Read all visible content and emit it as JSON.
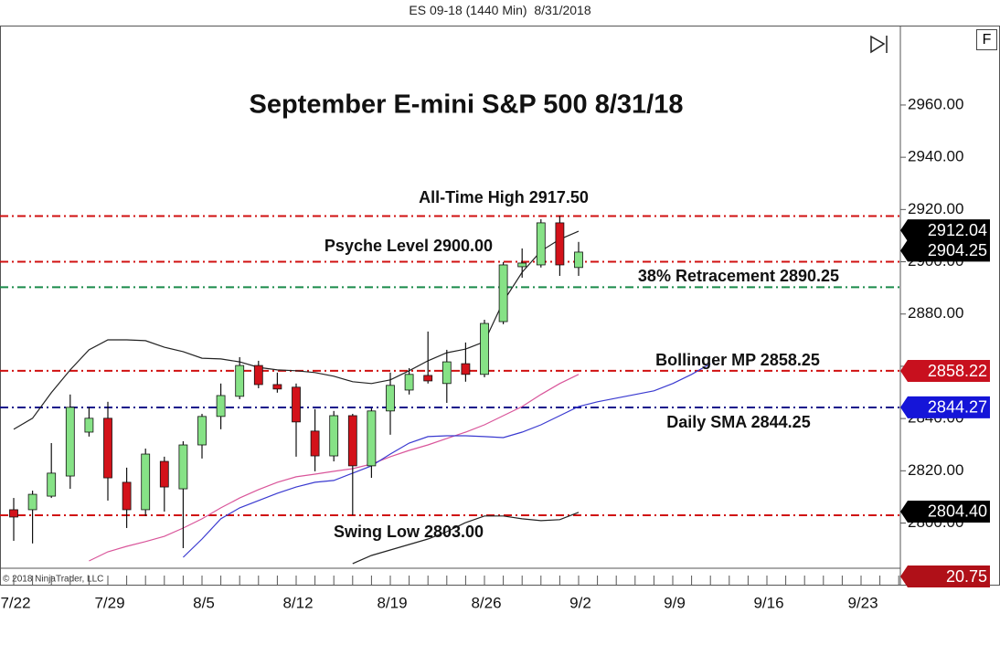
{
  "header": "ES 09-18 (1440 Min)  8/31/2018",
  "copyright": "© 2018 NinjaTrader, LLC",
  "chart_data": {
    "type": "candlestick",
    "title": "September E-mini S&P 500 8/31/18",
    "categories": [
      "7/22",
      null,
      null,
      null,
      null,
      "7/29",
      null,
      null,
      null,
      null,
      "8/5",
      null,
      null,
      null,
      null,
      "8/12",
      null,
      null,
      null,
      null,
      "8/19",
      null,
      null,
      null,
      null,
      "8/26",
      null,
      null,
      null,
      null,
      "9/2",
      null,
      null,
      null,
      null,
      "9/9",
      null,
      null,
      null,
      null,
      "9/16",
      null,
      null,
      null,
      null,
      "9/23",
      null,
      null
    ],
    "open": [
      2805.1,
      2805.1,
      2810.3,
      2818.0,
      2834.8,
      2840.1,
      2815.6,
      2805.1,
      2823.6,
      2813.1,
      2829.9,
      2840.8,
      2848.5,
      2860.3,
      2853.0,
      2852.0,
      2835.2,
      2825.7,
      2841.1,
      2821.9,
      2842.9,
      2850.9,
      2856.5,
      2853.4,
      2861.0,
      2856.9,
      2877.1,
      2898.1,
      2898.8,
      2914.9,
      2897.8,
      null,
      null,
      null,
      null,
      null,
      null,
      null,
      null,
      null,
      null,
      null,
      null,
      null,
      null,
      null,
      null,
      null
    ],
    "high": [
      2809.6,
      2812.4,
      2830.6,
      2849.2,
      2844.3,
      2846.4,
      2821.2,
      2828.5,
      2825.4,
      2831.3,
      2841.8,
      2853.4,
      2863.5,
      2862.1,
      2857.6,
      2853.4,
      2843.6,
      2842.9,
      2841.8,
      2843.9,
      2857.6,
      2859.3,
      2873.3,
      2866.3,
      2869.1,
      2877.8,
      2899.9,
      2905.1,
      2916.3,
      2917.5,
      2907.6,
      null,
      null,
      null,
      null,
      null,
      null,
      null,
      null,
      null,
      null,
      null,
      null,
      null,
      null,
      null,
      null,
      null
    ],
    "low": [
      2793.2,
      2792.2,
      2809.6,
      2813.1,
      2833.1,
      2808.6,
      2798.1,
      2802.7,
      2804.4,
      2790.4,
      2824.7,
      2835.9,
      2847.4,
      2851.6,
      2849.9,
      2825.4,
      2819.8,
      2823.6,
      2803.0,
      2817.3,
      2833.8,
      2849.2,
      2853.4,
      2846.0,
      2854.1,
      2855.8,
      2876.1,
      2893.9,
      2897.8,
      2894.6,
      2894.6,
      null,
      null,
      null,
      null,
      null,
      null,
      null,
      null,
      null,
      null,
      null,
      null,
      null,
      null,
      null,
      null,
      null
    ],
    "close": [
      2802.3,
      2811.0,
      2819.1,
      2844.3,
      2840.1,
      2817.3,
      2805.1,
      2826.4,
      2813.8,
      2829.9,
      2840.8,
      2848.8,
      2860.3,
      2853.0,
      2851.3,
      2838.7,
      2825.7,
      2841.1,
      2821.9,
      2842.9,
      2852.7,
      2856.9,
      2854.4,
      2861.7,
      2856.9,
      2876.4,
      2898.8,
      2899.5,
      2914.9,
      2898.8,
      2903.7,
      null,
      null,
      null,
      null,
      null,
      null,
      null,
      null,
      null,
      null,
      null,
      null,
      null,
      null,
      null,
      null,
      null
    ],
    "up_color": "#86e286",
    "down_color": "#d3121a",
    "lines": [
      {
        "color": "#222222",
        "values": [
          2835.9,
          2840.1,
          2849.9,
          2858.6,
          2866.3,
          2870.1,
          2870.1,
          2869.8,
          2867.3,
          2865.6,
          2863.1,
          2862.8,
          2861.7,
          2859.6,
          2858.6,
          2858.3,
          2857.6,
          2856.2,
          2854.1,
          2853.4,
          2854.8,
          2858.3,
          2862.1,
          2865.2,
          2866.6,
          2869.4,
          2884.8,
          2896.0,
          2904.1,
          2908.6,
          2911.7,
          null,
          null,
          null,
          null,
          null,
          null,
          null,
          null,
          null,
          null,
          null,
          null,
          null,
          null,
          null,
          null,
          null
        ]
      },
      {
        "color": "#222222",
        "values": [
          null,
          null,
          null,
          null,
          null,
          null,
          null,
          null,
          null,
          null,
          null,
          null,
          null,
          null,
          null,
          null,
          null,
          null,
          2784.5,
          2787.6,
          2789.7,
          2791.8,
          2793.9,
          2796.7,
          2800.2,
          2802.7,
          2802.7,
          2801.6,
          2800.9,
          2801.3,
          2804.1,
          null,
          null,
          null,
          null,
          null,
          null,
          null,
          null,
          null,
          null,
          null,
          null,
          null,
          null,
          null,
          null,
          null
        ]
      },
      {
        "color": "#d9559a",
        "values": [
          null,
          null,
          null,
          null,
          2785.5,
          2789.0,
          2791.1,
          2792.9,
          2794.9,
          2798.1,
          2801.6,
          2805.8,
          2809.6,
          2812.8,
          2815.6,
          2817.7,
          2818.7,
          2819.8,
          2820.8,
          2822.6,
          2825.4,
          2827.8,
          2829.9,
          2832.4,
          2834.8,
          2837.6,
          2841.1,
          2844.6,
          2849.2,
          2853.4,
          2856.9,
          null,
          null,
          null,
          null,
          null,
          null,
          null,
          null,
          null,
          null,
          null,
          null,
          null,
          null,
          null,
          null,
          null
        ]
      },
      {
        "color": "#3a3ad0",
        "values": [
          null,
          null,
          null,
          null,
          null,
          null,
          null,
          null,
          null,
          2786.9,
          2793.9,
          2801.6,
          2805.8,
          2808.6,
          2811.4,
          2813.8,
          2815.6,
          2816.3,
          2819.1,
          2821.9,
          2826.4,
          2830.6,
          2833.1,
          2833.4,
          2833.4,
          2833.1,
          2832.7,
          2834.8,
          2837.6,
          2841.1,
          2844.6,
          2846.4,
          2847.8,
          2849.2,
          2850.6,
          2853.4,
          2856.9,
          2861.0,
          null,
          null,
          null,
          null,
          null,
          null,
          null,
          null,
          null,
          null
        ]
      }
    ],
    "levels": [
      {
        "label": "All-Time High 2917.50",
        "value": 2917.5,
        "color": "#d01010"
      },
      {
        "label": "Psyche Level 2900.00",
        "value": 2900.0,
        "color": "#d01010"
      },
      {
        "label": "38% Retracement 2890.25",
        "value": 2890.25,
        "color": "#1a8a4a"
      },
      {
        "label": "Bollinger MP 2858.25",
        "value": 2858.25,
        "color": "#d01010"
      },
      {
        "label": "Daily SMA 2844.25",
        "value": 2844.25,
        "color": "#10108a"
      },
      {
        "label": "Swing Low 2803.00",
        "value": 2803.0,
        "color": "#d01010"
      }
    ],
    "price_markers": [
      {
        "value": 2912.04,
        "label": "2912.04",
        "color": "#000000"
      },
      {
        "value": 2904.25,
        "label": "2904.25",
        "color": "#000000"
      },
      {
        "value": 2858.22,
        "label": "2858.22",
        "color": "#c8101e"
      },
      {
        "value": 2844.27,
        "label": "2844.27",
        "color": "#1515d8"
      },
      {
        "value": 2804.4,
        "label": "2804.40",
        "color": "#000000"
      }
    ],
    "indicator_marker": {
      "value": 20.75,
      "label": "20.75",
      "color": "#b01018"
    },
    "ylim": [
      2782.7,
      2990.4
    ],
    "yticks": [
      {
        "value": 2960,
        "label": "2960.00"
      },
      {
        "value": 2940,
        "label": "2940.00"
      },
      {
        "value": 2920,
        "label": "2920.00"
      },
      {
        "value": 2900,
        "label": "2900.00"
      },
      {
        "value": 2880,
        "label": "2880.00"
      },
      {
        "value": 2860,
        "label": "2860.00"
      },
      {
        "value": 2840,
        "label": "2840.00"
      },
      {
        "value": 2820,
        "label": "2820.00"
      },
      {
        "value": 2800,
        "label": "2800.00"
      }
    ]
  }
}
